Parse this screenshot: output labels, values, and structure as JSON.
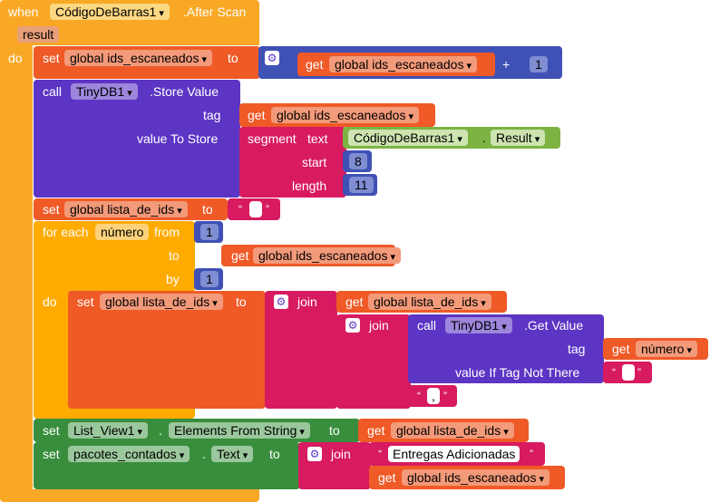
{
  "when_block": {
    "keyword": "when",
    "component": "CódigoDeBarras1",
    "event": ".After Scan",
    "param": "result",
    "do": "do"
  },
  "set_ids": {
    "set": "set",
    "var": "global ids_escaneados",
    "to": "to",
    "get": "get",
    "get_var": "global ids_escaneados",
    "op": "+",
    "num": "1"
  },
  "call_store": {
    "call": "call",
    "component": "TinyDB1",
    "method": ".Store Value",
    "tag_label": "tag",
    "get": "get",
    "tag_var": "global ids_escaneados",
    "value_label": "value To Store",
    "segment": "segment",
    "text": "text",
    "text_comp": "CódigoDeBarras1",
    "text_prop": "Result",
    "start_label": "start",
    "start_val": "8",
    "length_label": "length",
    "length_val": "11"
  },
  "set_lista": {
    "set": "set",
    "var": "global lista_de_ids",
    "to": "to",
    "open_q": "“",
    "close_q": "”"
  },
  "foreach": {
    "label": "for each",
    "var": "número",
    "from_label": "from",
    "from_val": "1",
    "to_label": "to",
    "get": "get",
    "to_var": "global ids_escaneados",
    "by_label": "by",
    "by_val": "1",
    "do": "do"
  },
  "inner_set": {
    "set": "set",
    "var": "global lista_de_ids",
    "to": "to",
    "join": "join",
    "get": "get",
    "get_var": "global lista_de_ids",
    "join2": "join",
    "call": "call",
    "component": "TinyDB1",
    "method": ".Get Value",
    "tag_label": "tag",
    "tag_get": "get",
    "tag_var": "número",
    "vitn_label": "value If Tag Not There",
    "open_q": "“",
    "close_q": "”",
    "comma": ","
  },
  "set_list_view": {
    "set": "set",
    "component": "List_View1",
    "prop": "Elements From String",
    "to": "to",
    "get": "get",
    "get_var": "global lista_de_ids"
  },
  "set_pacotes": {
    "set": "set",
    "component": "pacotes_contados",
    "prop": "Text",
    "to": "to",
    "join": "join",
    "text": "Entregas Adicionadas",
    "open_q": "“",
    "close_q": "”",
    "get": "get",
    "get_var": "global ids_escaneados"
  },
  "colors": {
    "event": "#f9a825",
    "var": "#ef5a27",
    "proc": "#5c35c4",
    "text": "#d81b60",
    "math": "#3f51b5",
    "comp": "#7cb342",
    "setter": "#388e3c",
    "ctrl": "#ffab00"
  }
}
